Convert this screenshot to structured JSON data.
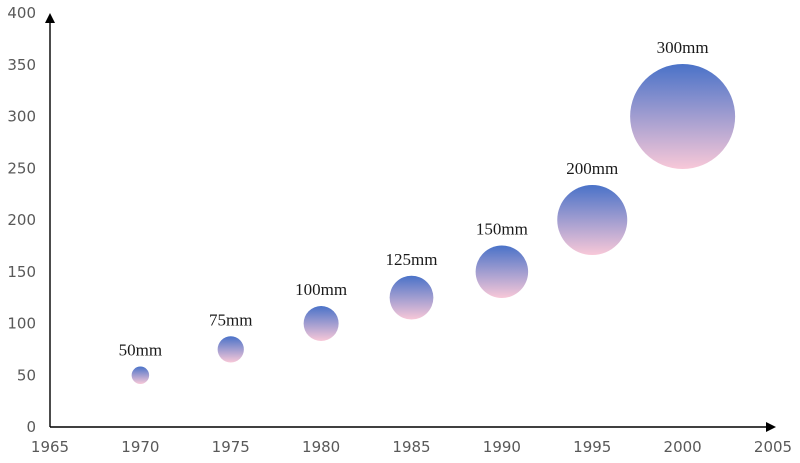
{
  "chart_data": {
    "type": "scatter",
    "style": "bubble",
    "x": [
      1970,
      1975,
      1980,
      1985,
      1990,
      1995,
      2000
    ],
    "y": [
      50,
      75,
      100,
      125,
      150,
      200,
      300
    ],
    "point_labels": [
      "50mm",
      "75mm",
      "100mm",
      "125mm",
      "150mm",
      "200mm",
      "300mm"
    ],
    "xlim": [
      1965,
      2005
    ],
    "ylim": [
      0,
      400
    ],
    "xticks": [
      "1965",
      "1970",
      "1975",
      "1980",
      "1985",
      "1990",
      "1995",
      "2000",
      "2005"
    ],
    "yticks": [
      "0",
      "50",
      "100",
      "150",
      "200",
      "250",
      "300",
      "350",
      "400"
    ],
    "title": "",
    "xlabel": "",
    "ylabel": "",
    "grid": false,
    "legend": "none",
    "colors": {
      "bubble_top": "#4a72c8",
      "bubble_bottom": "#f8c8d8",
      "axis": "#000000",
      "tick_text": "#595959"
    }
  }
}
